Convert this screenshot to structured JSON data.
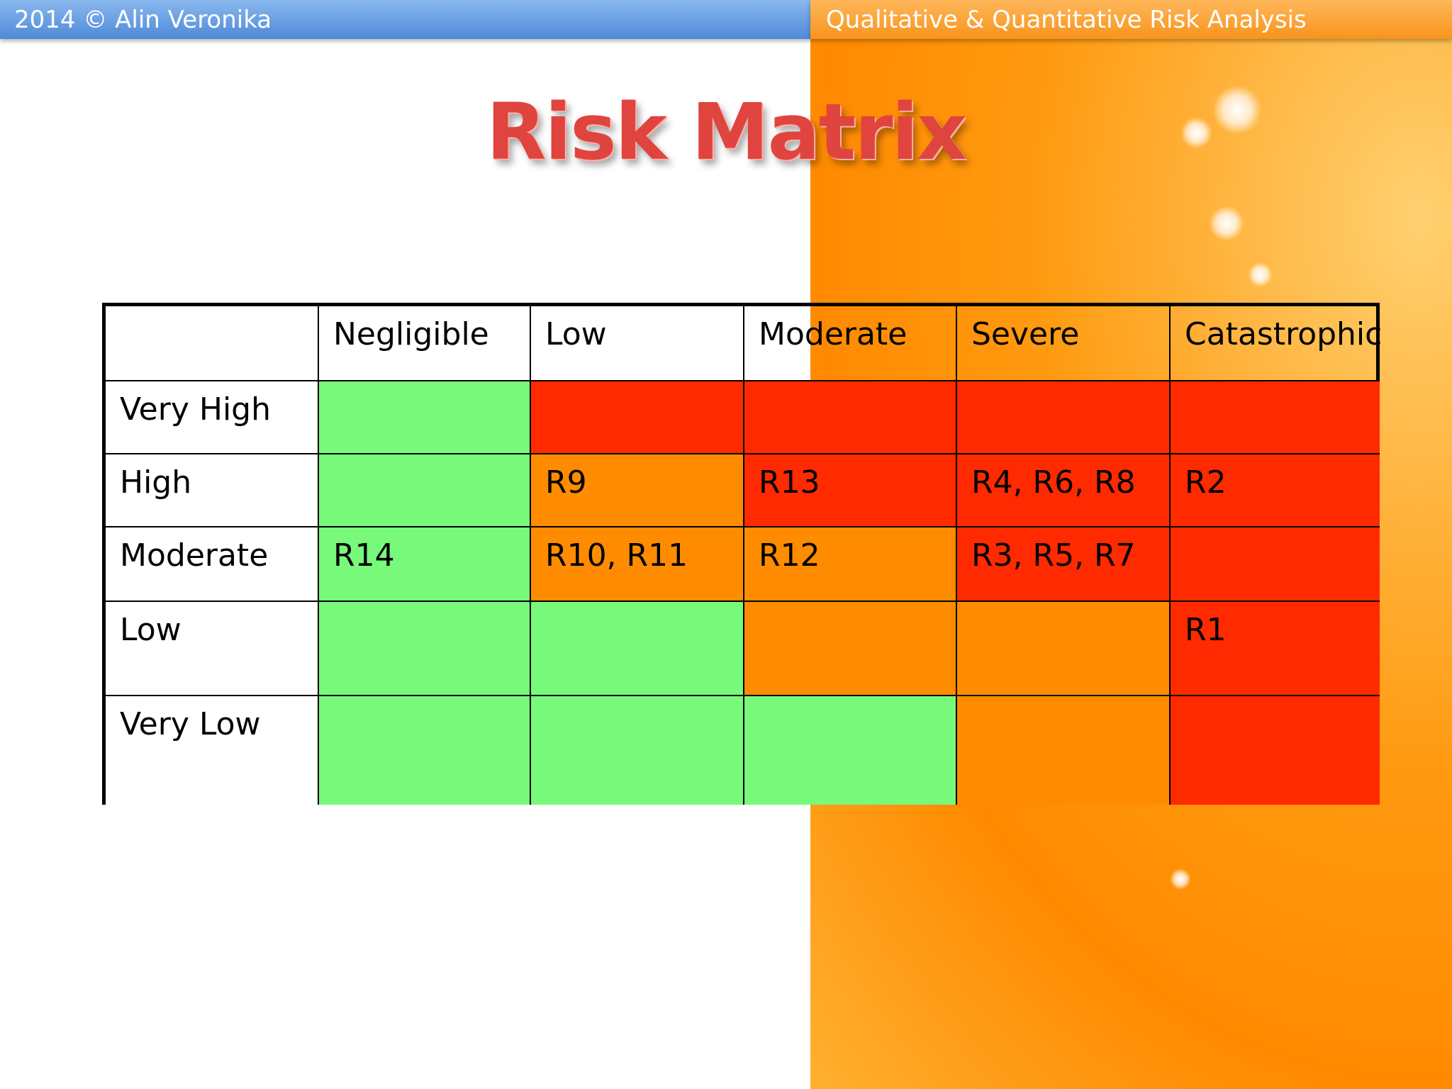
{
  "header": {
    "left": "2014 © Alin Veronika",
    "right": "Qualitative & Quantitative Risk Analysis"
  },
  "title": "Risk Matrix",
  "table": {
    "columns": [
      null,
      "Negligible",
      "Low",
      "Moderate",
      "Severe",
      "Catastrophic"
    ],
    "rows": [
      {
        "label": "Very High",
        "cells": [
          null,
          null,
          null,
          null,
          null
        ],
        "colors": [
          "#78f97a",
          "#ff2a00",
          "#ff2a00",
          "#ff2a00",
          "#ff2a00"
        ]
      },
      {
        "label": "High",
        "cells": [
          null,
          "R9",
          "R13",
          "R4, R6, R8",
          "R2"
        ],
        "colors": [
          "#78f97a",
          "#ff8c00",
          "#ff2a00",
          "#ff2a00",
          "#ff2a00"
        ]
      },
      {
        "label": "Moderate",
        "cells": [
          "R14",
          "R10, R11",
          "R12",
          "R3, R5, R7",
          null
        ],
        "colors": [
          "#78f97a",
          "#ff8c00",
          "#ff8c00",
          "#ff2a00",
          "#ff2a00"
        ]
      },
      {
        "label": "Low",
        "cells": [
          null,
          null,
          null,
          null,
          "R1"
        ],
        "colors": [
          "#78f97a",
          "#78f97a",
          "#ff8c00",
          "#ff8c00",
          "#ff2a00"
        ]
      },
      {
        "label": "Very Low",
        "cells": [
          null,
          null,
          null,
          null,
          null
        ],
        "colors": [
          "#78f97a",
          "#78f97a",
          "#78f97a",
          "#ff8c00",
          "#ff2a00"
        ]
      }
    ]
  }
}
